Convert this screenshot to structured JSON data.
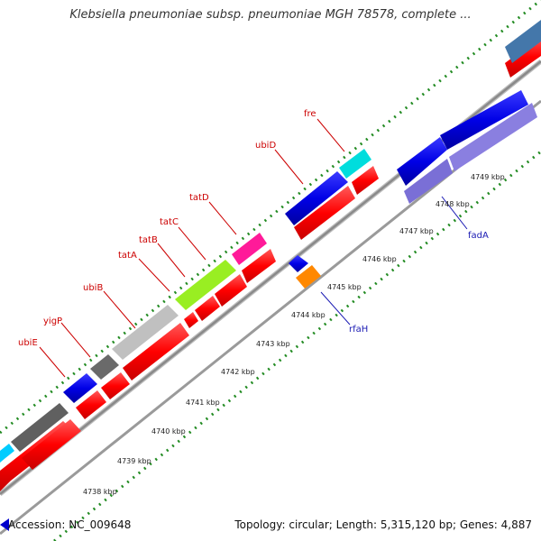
{
  "map": {
    "title": "Klebsiella pneumoniae subsp. pneumoniae MGH 78578, complete ...",
    "accession_label": "Accession: NC_009648",
    "summary_label": "Topology: circular; Length: 5,315,120 bp; Genes: 4,887"
  },
  "colors": {
    "forward": "#ff0000",
    "reverse": "#0000e6",
    "reverse_light": "#7a6fd6",
    "label_red": "#cc0000",
    "label_blue": "#1a1ab3",
    "ticks": "#228b22",
    "backbone": "#8a8a8a"
  },
  "scale": {
    "unit": "kbp",
    "ticks": [
      "4738 kbp",
      "4739 kbp",
      "4740 kbp",
      "4741 kbp",
      "4742 kbp",
      "4743 kbp",
      "4744 kbp",
      "4745 kbp",
      "4746 kbp",
      "4747 kbp",
      "4748 kbp",
      "4749 kbp"
    ]
  },
  "gene_labels_outer": [
    "ubiE",
    "yigP",
    "ubiB",
    "tatA",
    "tatB",
    "tatC",
    "tatD",
    "ubiD",
    "fre"
  ],
  "gene_labels_inner": [
    "rfaH",
    "fadA"
  ]
}
